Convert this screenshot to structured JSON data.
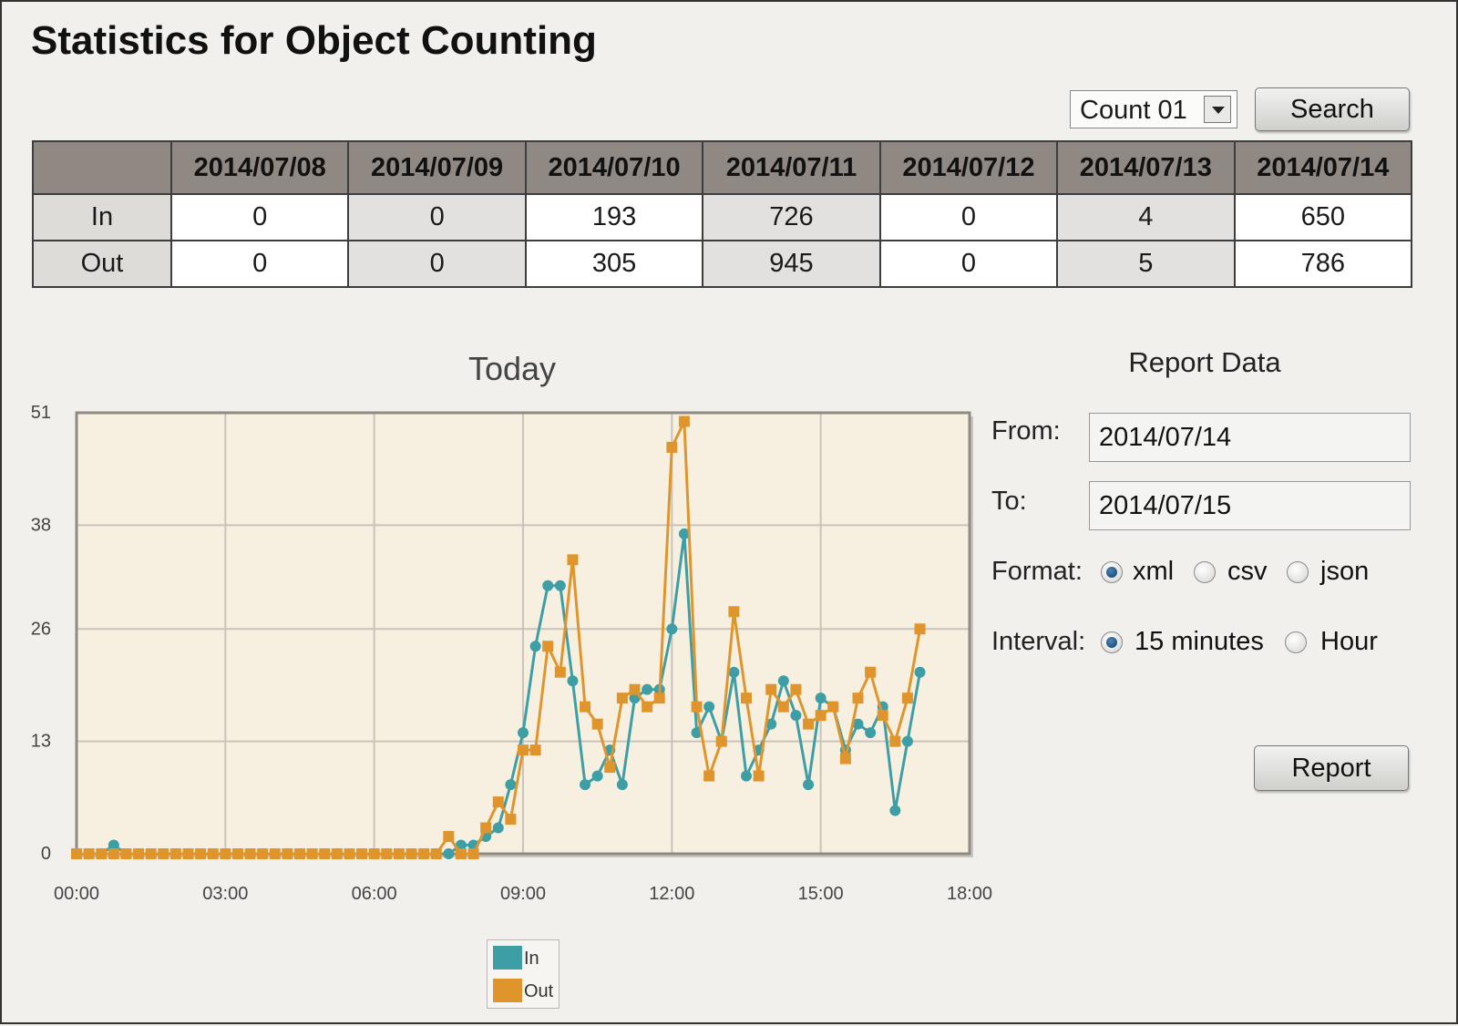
{
  "title": "Statistics for Object Counting",
  "counter_select": {
    "value": "Count 01"
  },
  "search_label": "Search",
  "table": {
    "dates": [
      "2014/07/08",
      "2014/07/09",
      "2014/07/10",
      "2014/07/11",
      "2014/07/12",
      "2014/07/13",
      "2014/07/14"
    ],
    "rows": [
      {
        "label": "In",
        "values": [
          "0",
          "0",
          "193",
          "726",
          "0",
          "4",
          "650"
        ]
      },
      {
        "label": "Out",
        "values": [
          "0",
          "0",
          "305",
          "945",
          "0",
          "5",
          "786"
        ]
      }
    ]
  },
  "report": {
    "heading": "Report Data",
    "from_label": "From:",
    "from_value": "2014/07/14",
    "to_label": "To:",
    "to_value": "2014/07/15",
    "format_label": "Format:",
    "format_options": [
      "xml",
      "csv",
      "json"
    ],
    "format_selected": "xml",
    "interval_label": "Interval:",
    "interval_options": [
      "15 minutes",
      "Hour"
    ],
    "interval_selected": "15 minutes",
    "button_label": "Report"
  },
  "colors": {
    "in": "#3e9ea6",
    "out": "#e0952c",
    "plot_bg": "#f7f0e1"
  },
  "chart_data": {
    "type": "line",
    "title": "Today",
    "x_unit": "hours",
    "x_ticks": [
      "00:00",
      "03:00",
      "06:00",
      "09:00",
      "12:00",
      "15:00",
      "18:00"
    ],
    "y_ticks": [
      "0",
      "13",
      "26",
      "38",
      "51"
    ],
    "xlim": [
      0,
      18
    ],
    "ylim": [
      0,
      51
    ],
    "legend": "bottom",
    "series": [
      {
        "name": "In",
        "points": [
          [
            0,
            0
          ],
          [
            0.25,
            0
          ],
          [
            0.5,
            0
          ],
          [
            0.75,
            1
          ],
          [
            1,
            0
          ],
          [
            1.25,
            0
          ],
          [
            1.5,
            0
          ],
          [
            1.75,
            0
          ],
          [
            2,
            0
          ],
          [
            2.25,
            0
          ],
          [
            2.5,
            0
          ],
          [
            2.75,
            0
          ],
          [
            3,
            0
          ],
          [
            3.25,
            0
          ],
          [
            3.5,
            0
          ],
          [
            3.75,
            0
          ],
          [
            4,
            0
          ],
          [
            4.25,
            0
          ],
          [
            4.5,
            0
          ],
          [
            4.75,
            0
          ],
          [
            5,
            0
          ],
          [
            5.25,
            0
          ],
          [
            5.5,
            0
          ],
          [
            5.75,
            0
          ],
          [
            6,
            0
          ],
          [
            6.25,
            0
          ],
          [
            6.5,
            0
          ],
          [
            6.75,
            0
          ],
          [
            7,
            0
          ],
          [
            7.25,
            0
          ],
          [
            7.5,
            0
          ],
          [
            7.75,
            1
          ],
          [
            8,
            1
          ],
          [
            8.25,
            2
          ],
          [
            8.5,
            3
          ],
          [
            8.75,
            8
          ],
          [
            9,
            14
          ],
          [
            9.25,
            24
          ],
          [
            9.5,
            31
          ],
          [
            9.75,
            31
          ],
          [
            10,
            20
          ],
          [
            10.25,
            8
          ],
          [
            10.5,
            9
          ],
          [
            10.75,
            12
          ],
          [
            11,
            8
          ],
          [
            11.25,
            18
          ],
          [
            11.5,
            19
          ],
          [
            11.75,
            19
          ],
          [
            12,
            26
          ],
          [
            12.25,
            37
          ],
          [
            12.5,
            14
          ],
          [
            12.75,
            17
          ],
          [
            13,
            13
          ],
          [
            13.25,
            21
          ],
          [
            13.5,
            9
          ],
          [
            13.75,
            12
          ],
          [
            14,
            15
          ],
          [
            14.25,
            20
          ],
          [
            14.5,
            16
          ],
          [
            14.75,
            8
          ],
          [
            15,
            18
          ],
          [
            15.25,
            17
          ],
          [
            15.5,
            12
          ],
          [
            15.75,
            15
          ],
          [
            16,
            14
          ],
          [
            16.25,
            17
          ],
          [
            16.5,
            5
          ],
          [
            16.75,
            13
          ],
          [
            17,
            21
          ]
        ]
      },
      {
        "name": "Out",
        "points": [
          [
            0,
            0
          ],
          [
            0.25,
            0
          ],
          [
            0.5,
            0
          ],
          [
            0.75,
            0
          ],
          [
            1,
            0
          ],
          [
            1.25,
            0
          ],
          [
            1.5,
            0
          ],
          [
            1.75,
            0
          ],
          [
            2,
            0
          ],
          [
            2.25,
            0
          ],
          [
            2.5,
            0
          ],
          [
            2.75,
            0
          ],
          [
            3,
            0
          ],
          [
            3.25,
            0
          ],
          [
            3.5,
            0
          ],
          [
            3.75,
            0
          ],
          [
            4,
            0
          ],
          [
            4.25,
            0
          ],
          [
            4.5,
            0
          ],
          [
            4.75,
            0
          ],
          [
            5,
            0
          ],
          [
            5.25,
            0
          ],
          [
            5.5,
            0
          ],
          [
            5.75,
            0
          ],
          [
            6,
            0
          ],
          [
            6.25,
            0
          ],
          [
            6.5,
            0
          ],
          [
            6.75,
            0
          ],
          [
            7,
            0
          ],
          [
            7.25,
            0
          ],
          [
            7.5,
            2
          ],
          [
            7.75,
            0
          ],
          [
            8,
            0
          ],
          [
            8.25,
            3
          ],
          [
            8.5,
            6
          ],
          [
            8.75,
            4
          ],
          [
            9,
            12
          ],
          [
            9.25,
            12
          ],
          [
            9.5,
            24
          ],
          [
            9.75,
            21
          ],
          [
            10,
            34
          ],
          [
            10.25,
            17
          ],
          [
            10.5,
            15
          ],
          [
            10.75,
            10
          ],
          [
            11,
            18
          ],
          [
            11.25,
            19
          ],
          [
            11.5,
            17
          ],
          [
            11.75,
            18
          ],
          [
            12,
            47
          ],
          [
            12.25,
            50
          ],
          [
            12.5,
            17
          ],
          [
            12.75,
            9
          ],
          [
            13,
            13
          ],
          [
            13.25,
            28
          ],
          [
            13.5,
            18
          ],
          [
            13.75,
            9
          ],
          [
            14,
            19
          ],
          [
            14.25,
            17
          ],
          [
            14.5,
            19
          ],
          [
            14.75,
            15
          ],
          [
            15,
            16
          ],
          [
            15.25,
            17
          ],
          [
            15.5,
            11
          ],
          [
            15.75,
            18
          ],
          [
            16,
            21
          ],
          [
            16.25,
            16
          ],
          [
            16.5,
            13
          ],
          [
            16.75,
            18
          ],
          [
            17,
            26
          ]
        ]
      }
    ]
  }
}
